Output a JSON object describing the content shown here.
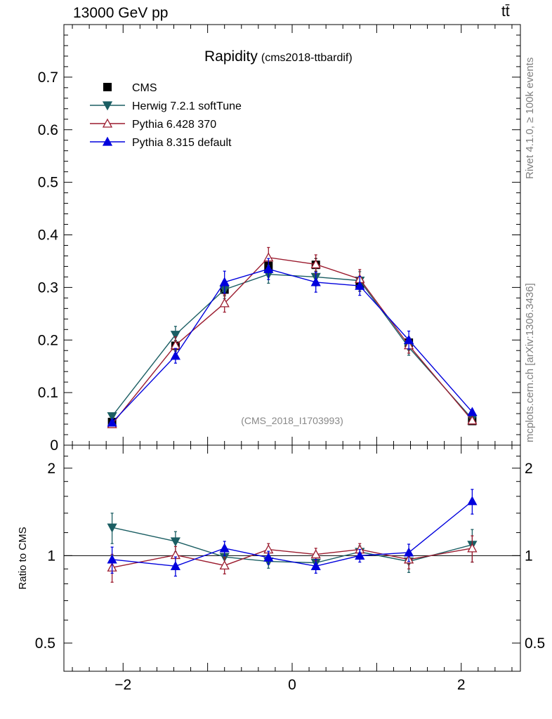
{
  "header": {
    "energy_label": "13000 GeV pp",
    "process_label": "tt̄"
  },
  "side_labels": {
    "rivet": "Rivet 4.1.0, ≥ 100k events",
    "mcplots": "mcplots.cern.ch [arXiv:1306.3436]"
  },
  "chart_data": {
    "type": "scatter",
    "title": "Rapidity",
    "subtitle": "(cms2018-ttbardif)",
    "watermark": "(CMS_2018_I1703993)",
    "xlabel": "",
    "ylabel": "",
    "ratio_ylabel": "Ratio to CMS",
    "xlim": [
      -2.7,
      2.7
    ],
    "ylim": [
      0,
      0.8
    ],
    "ratio_ylim": [
      0.4,
      2.4
    ],
    "x_ticks": [
      -2,
      0,
      2
    ],
    "y_ticks": [
      0,
      0.1,
      0.2,
      0.3,
      0.4,
      0.5,
      0.6,
      0.7
    ],
    "y_tick_labels": [
      "0",
      "0.1",
      "0.2",
      "0.3",
      "0.4",
      "0.5",
      "0.6",
      "0.7"
    ],
    "ratio_ticks": [
      0.5,
      1,
      2
    ],
    "ratio_tick_labels": [
      "0.5",
      "1",
      "2"
    ],
    "x_tick_labels": [
      "−2",
      "0",
      "2"
    ],
    "bins": [
      [
        -2.6,
        -1.7
      ],
      [
        -1.7,
        -1.1
      ],
      [
        -1.1,
        -0.5
      ],
      [
        -0.5,
        0
      ],
      [
        0,
        0.5
      ],
      [
        0.5,
        1.1
      ],
      [
        1.1,
        1.7
      ],
      [
        1.7,
        2.6
      ]
    ],
    "x": [
      -2.13,
      -1.38,
      -0.8,
      -0.28,
      0.28,
      0.8,
      1.38,
      2.13
    ],
    "data": {
      "name": "CMS",
      "values": [
        0.044,
        0.189,
        0.296,
        0.341,
        0.343,
        0.305,
        0.195,
        0.046
      ],
      "errors": [
        0.004,
        0.01,
        0.012,
        0.012,
        0.012,
        0.012,
        0.01,
        0.004
      ]
    },
    "series": [
      {
        "name": "Herwig 7.2.1 softTune",
        "color": "#1b5e63",
        "marker": "triangle-down-filled",
        "values": [
          0.055,
          0.21,
          0.296,
          0.325,
          0.32,
          0.313,
          0.186,
          0.05
        ],
        "errors": [
          0.004,
          0.016,
          0.017,
          0.017,
          0.017,
          0.017,
          0.015,
          0.004
        ],
        "ratio": [
          1.25,
          1.12,
          0.99,
          0.955,
          0.945,
          1.03,
          0.955,
          1.09
        ],
        "ratio_errors": [
          0.15,
          0.09,
          0.06,
          0.05,
          0.05,
          0.05,
          0.08,
          0.14
        ]
      },
      {
        "name": "Pythia 6.428 370",
        "color": "#9b1b2e",
        "marker": "triangle-up-open",
        "values": [
          0.04,
          0.19,
          0.27,
          0.357,
          0.344,
          0.316,
          0.19,
          0.047
        ],
        "errors": [
          0.004,
          0.016,
          0.017,
          0.019,
          0.018,
          0.018,
          0.015,
          0.004
        ],
        "ratio": [
          0.91,
          1.005,
          0.925,
          1.05,
          1.01,
          1.05,
          0.97,
          1.06
        ],
        "ratio_errors": [
          0.1,
          0.07,
          0.06,
          0.05,
          0.05,
          0.05,
          0.07,
          0.11
        ]
      },
      {
        "name": "Pythia 8.315 default",
        "color": "#0000dd",
        "marker": "triangle-up-filled",
        "values": [
          0.043,
          0.17,
          0.31,
          0.335,
          0.31,
          0.303,
          0.2,
          0.063
        ],
        "errors": [
          0.004,
          0.014,
          0.021,
          0.02,
          0.019,
          0.018,
          0.017,
          0.005
        ],
        "ratio": [
          0.97,
          0.92,
          1.06,
          0.985,
          0.92,
          1.0,
          1.025,
          1.54
        ],
        "ratio_errors": [
          0.1,
          0.07,
          0.06,
          0.05,
          0.05,
          0.05,
          0.07,
          0.15
        ]
      }
    ]
  }
}
